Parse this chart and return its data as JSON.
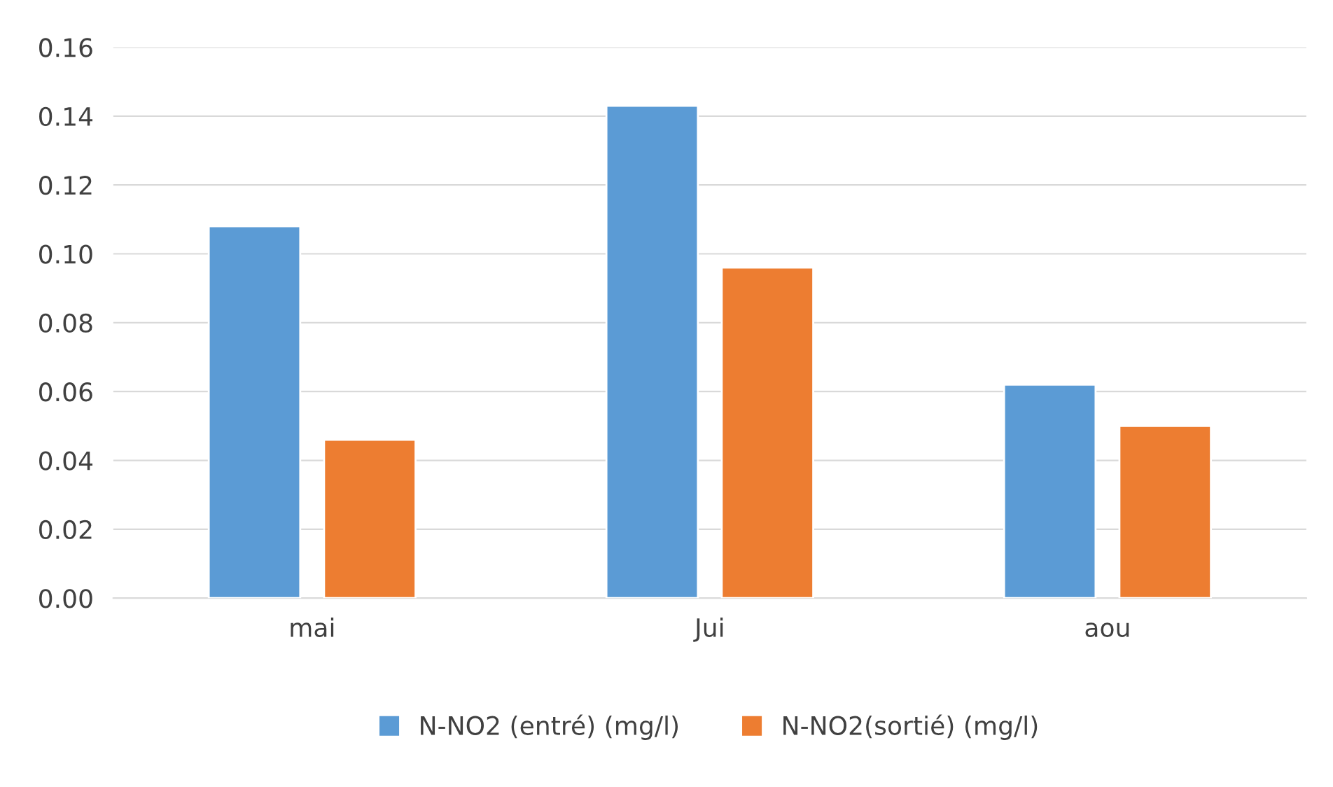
{
  "chart_data": {
    "type": "bar",
    "categories": [
      "mai",
      "Jui",
      "aou"
    ],
    "series": [
      {
        "name": "N-NO2 (entré) (mg/l)",
        "color": "#5b9bd5",
        "values": [
          0.108,
          0.143,
          0.062
        ]
      },
      {
        "name": "N-NO2(sortié) (mg/l)",
        "color": "#ed7d31",
        "values": [
          0.046,
          0.096,
          0.05
        ]
      }
    ],
    "ylim": [
      0,
      0.16
    ],
    "yticks": [
      {
        "value": 0,
        "label": "0.00"
      },
      {
        "value": 0.02,
        "label": "0.02"
      },
      {
        "value": 0.04,
        "label": "0.04"
      },
      {
        "value": 0.06,
        "label": "0.06"
      },
      {
        "value": 0.08,
        "label": "0.08"
      },
      {
        "value": 0.1,
        "label": "0.10"
      },
      {
        "value": 0.12,
        "label": "0.12"
      },
      {
        "value": 0.14,
        "label": "0.14"
      },
      {
        "value": 0.16,
        "label": "0.16"
      }
    ],
    "grid": "y",
    "legend": "bottom"
  }
}
